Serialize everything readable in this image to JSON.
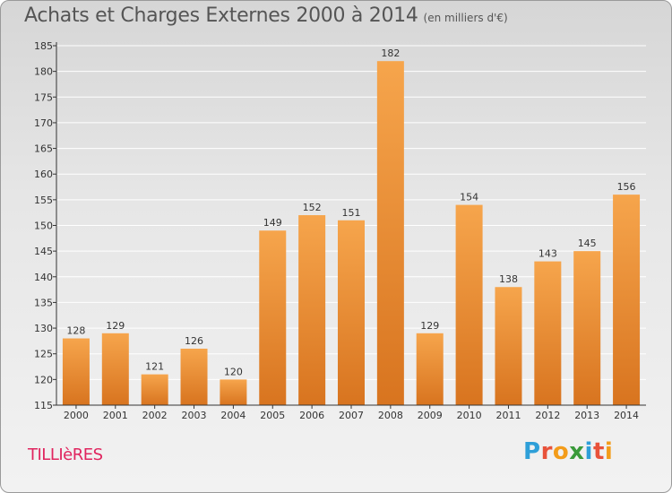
{
  "header": {
    "title": "Achats et Charges Externes 2000 à 2014",
    "subtitle": "(en milliers d'€)"
  },
  "footer": {
    "commune": "TILLIèRES",
    "logo_text": "Proxiti",
    "logo_letters": [
      "P",
      "r",
      "o",
      "x",
      "i",
      "t",
      "i"
    ],
    "logo_colors": [
      "#2e9fd8",
      "#e8523a",
      "#f39c1a",
      "#3a9a3a",
      "#2e9fd8",
      "#e8523a",
      "#f39c1a"
    ]
  },
  "colors": {
    "bar_top": "#f6a54c",
    "bar_bottom": "#d8741f",
    "axis": "#333333",
    "grid": "#ffffff"
  },
  "chart_data": {
    "type": "bar",
    "categories": [
      "2000",
      "2001",
      "2002",
      "2003",
      "2004",
      "2005",
      "2006",
      "2007",
      "2008",
      "2009",
      "2010",
      "2011",
      "2012",
      "2013",
      "2014"
    ],
    "values": [
      128,
      129,
      121,
      126,
      120,
      149,
      152,
      151,
      182,
      129,
      154,
      138,
      143,
      145,
      156
    ],
    "title": "Achats et Charges Externes 2000 à 2014",
    "ylim": [
      115,
      185
    ],
    "yticks": [
      115,
      120,
      125,
      130,
      135,
      140,
      145,
      150,
      155,
      160,
      165,
      170,
      175,
      180,
      185
    ],
    "grid": true,
    "data_labels": true
  }
}
